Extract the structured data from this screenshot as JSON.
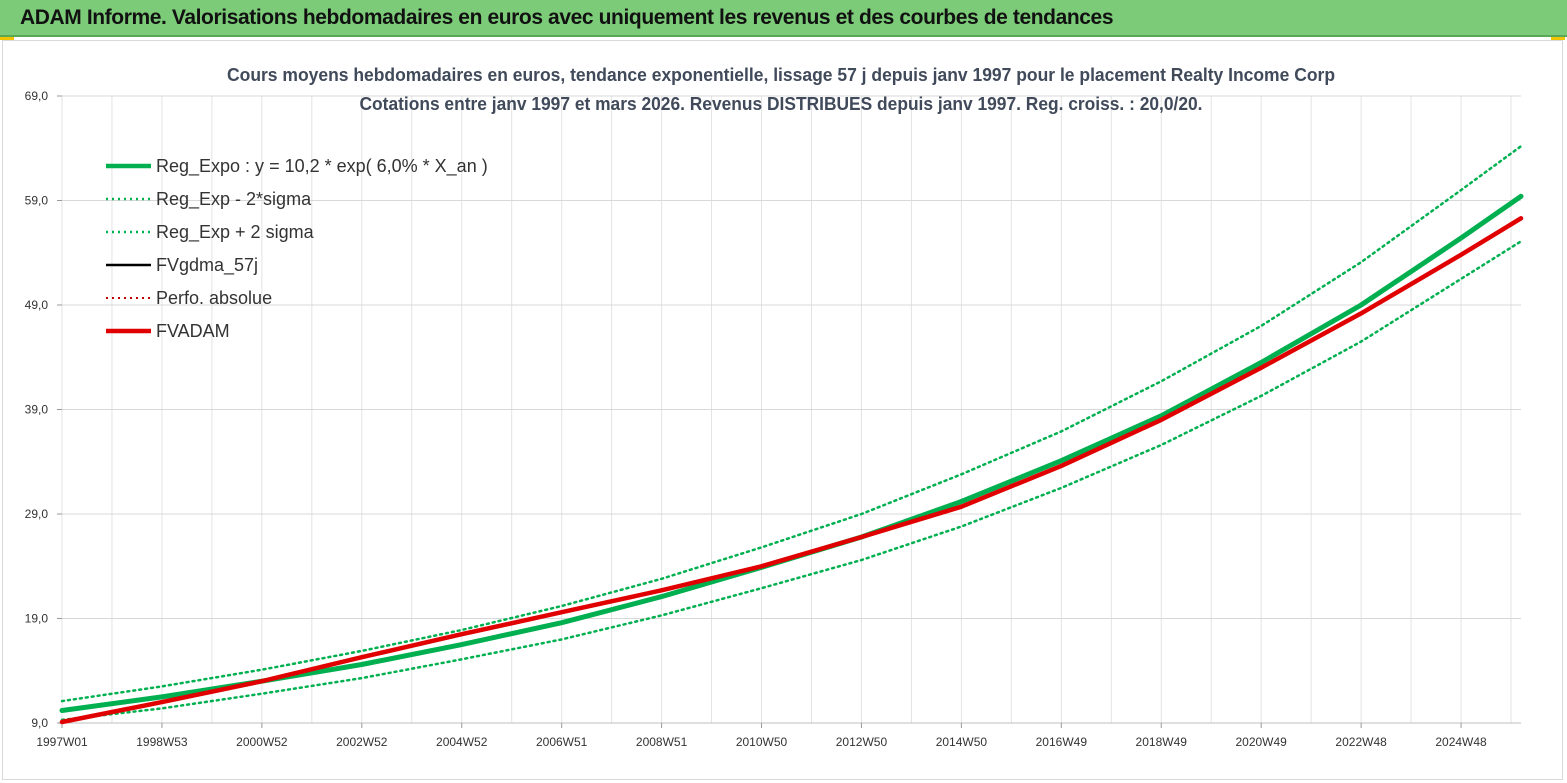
{
  "banner": {
    "title": "ADAM Informe. Valorisations hebdomadaires en euros avec uniquement les revenus et des courbes de tendances"
  },
  "colors": {
    "banner_bg": "#7ccb78",
    "accent": "#f2c400",
    "regression": "#00b050",
    "fvadam": "#e00000",
    "fvgdma": "#000000",
    "perfo": "#c00000",
    "grid": "#e3e3e3"
  },
  "chart_data": {
    "type": "line",
    "title": "Cours moyens hebdomadaires en euros, tendance exponentielle, lissage 57 j depuis janv 1997 pour le  placement Realty Income Corp",
    "subtitle": "Cotations entre janv 1997 et mars 2026. Revenus DISTRIBUES depuis janv 1997. Reg. croiss. : 20,0/20.",
    "xlabel": "",
    "ylabel": "",
    "x_range": [
      1997.0,
      2026.2
    ],
    "ylim": [
      9.0,
      69.0
    ],
    "y_ticks": [
      "9,0",
      "19,0",
      "29,0",
      "39,0",
      "49,0",
      "59,0",
      "69,0"
    ],
    "x_ticks": [
      {
        "label": "1997W01",
        "x": 1997.0
      },
      {
        "label": "1998W53",
        "x": 1999.0
      },
      {
        "label": "2000W52",
        "x": 2001.0
      },
      {
        "label": "2002W52",
        "x": 2003.0
      },
      {
        "label": "2004W52",
        "x": 2005.0
      },
      {
        "label": "2006W51",
        "x": 2007.0
      },
      {
        "label": "2008W51",
        "x": 2009.0
      },
      {
        "label": "2010W50",
        "x": 2011.0
      },
      {
        "label": "2012W50",
        "x": 2013.0
      },
      {
        "label": "2014W50",
        "x": 2015.0
      },
      {
        "label": "2016W49",
        "x": 2017.0
      },
      {
        "label": "2018W49",
        "x": 2019.0
      },
      {
        "label": "2020W49",
        "x": 2021.0
      },
      {
        "label": "2022W48",
        "x": 2023.0
      },
      {
        "label": "2024W48",
        "x": 2025.0
      }
    ],
    "grid": true,
    "legend_position": "top-left",
    "series": [
      {
        "name": "Reg_Expo : y = 10,2 * exp( 6,0% *  X_an )",
        "color": "#00b050",
        "style": "solid",
        "width": 5,
        "x": [
          1997.0,
          1999.0,
          2001.0,
          2003.0,
          2005.0,
          2007.0,
          2009.0,
          2011.0,
          2013.0,
          2015.0,
          2017.0,
          2019.0,
          2021.0,
          2023.0,
          2025.0,
          2026.2
        ],
        "y": [
          10.2,
          11.5,
          13.0,
          14.6,
          16.5,
          18.6,
          21.1,
          23.9,
          26.8,
          30.2,
          34.1,
          38.4,
          43.5,
          49.0,
          55.4,
          59.4
        ]
      },
      {
        "name": "Reg_Exp - 2*sigma",
        "color": "#00b050",
        "style": "dotted",
        "width": 2.5,
        "x": [
          1997.0,
          1999.0,
          2001.0,
          2003.0,
          2005.0,
          2007.0,
          2009.0,
          2011.0,
          2013.0,
          2015.0,
          2017.0,
          2019.0,
          2021.0,
          2023.0,
          2025.0,
          2026.2
        ],
        "y": [
          9.3,
          10.4,
          11.8,
          13.3,
          15.1,
          17.0,
          19.3,
          21.9,
          24.6,
          27.8,
          31.5,
          35.6,
          40.3,
          45.5,
          51.5,
          55.1
        ]
      },
      {
        "name": "Reg_Exp + 2 sigma",
        "color": "#00b050",
        "style": "dotted",
        "width": 2.5,
        "x": [
          1997.0,
          1999.0,
          2001.0,
          2003.0,
          2005.0,
          2007.0,
          2009.0,
          2011.0,
          2013.0,
          2015.0,
          2017.0,
          2019.0,
          2021.0,
          2023.0,
          2025.0,
          2026.2
        ],
        "y": [
          11.1,
          12.5,
          14.1,
          15.9,
          17.9,
          20.2,
          22.8,
          25.8,
          29.0,
          32.8,
          36.9,
          41.7,
          47.0,
          53.1,
          60.0,
          64.2
        ]
      },
      {
        "name": "FVgdma_57j",
        "color": "#000000",
        "style": "solid",
        "width": 2.5,
        "x": [
          1997.0,
          1999.0,
          2001.0,
          2003.0,
          2005.0,
          2007.0,
          2009.0,
          2011.0,
          2013.0,
          2015.0,
          2017.0,
          2019.0,
          2021.0,
          2023.0,
          2025.0,
          2026.2
        ],
        "y": [
          9.1,
          11.0,
          13.0,
          15.3,
          17.5,
          19.6,
          21.7,
          24.0,
          26.8,
          29.7,
          33.6,
          38.0,
          43.0,
          48.2,
          53.8,
          57.3
        ]
      },
      {
        "name": "Perfo. absolue",
        "color": "#c00000",
        "style": "dotted",
        "width": 2,
        "x": [
          1997.0,
          1999.0,
          2001.0,
          2003.0,
          2005.0,
          2007.0,
          2009.0,
          2011.0,
          2013.0,
          2015.0,
          2017.0,
          2019.0,
          2021.0,
          2023.0,
          2025.0,
          2026.2
        ],
        "y": [
          9.1,
          11.0,
          13.0,
          15.3,
          17.5,
          19.6,
          21.7,
          24.0,
          26.8,
          29.7,
          33.6,
          38.0,
          43.0,
          48.2,
          53.8,
          57.3
        ]
      },
      {
        "name": "FVADAM",
        "color": "#e00000",
        "style": "solid",
        "width": 4.5,
        "x": [
          1997.0,
          1999.0,
          2001.0,
          2003.0,
          2005.0,
          2007.0,
          2009.0,
          2011.0,
          2013.0,
          2015.0,
          2017.0,
          2019.0,
          2021.0,
          2023.0,
          2025.0,
          2026.2
        ],
        "y": [
          9.1,
          11.0,
          13.0,
          15.3,
          17.5,
          19.6,
          21.7,
          24.0,
          26.8,
          29.7,
          33.6,
          38.0,
          43.0,
          48.2,
          53.8,
          57.3
        ]
      }
    ]
  }
}
